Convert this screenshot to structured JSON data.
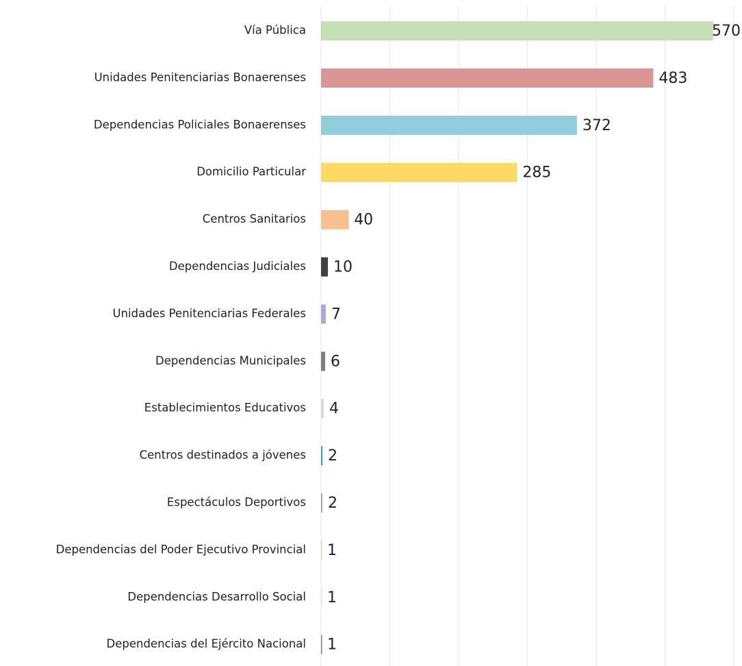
{
  "chart_data": {
    "type": "hbar",
    "categories": [
      "Vía Pública",
      "Unidades Penitenciarias Bonaerenses",
      "Dependencias Policiales Bonaerenses",
      "Domicilio Particular",
      "Centros Sanitarios",
      "Dependencias Judiciales",
      "Unidades Penitenciarias Federales",
      "Dependencias Municipales",
      "Establecimientos Educativos",
      "Centros destinados a jóvenes",
      "Espectáculos Deportivos",
      "Dependencias del Poder Ejecutivo Provincial",
      "Dependencias Desarrollo Social",
      "Dependencias del Ejército Nacional"
    ],
    "values": [
      570,
      483,
      372,
      285,
      40,
      10,
      7,
      6,
      4,
      2,
      2,
      1,
      1,
      1
    ],
    "colors": [
      "#c5e0b4",
      "#d99694",
      "#92cddc",
      "#ffd966",
      "#f8bf8f",
      "#404040",
      "#b4a7d6",
      "#7f7f7f",
      "#d9d9d9",
      "#2aa3d8",
      "#a6a6a6",
      "#f8cbad",
      "#e6f0a3",
      "#6f8f6f"
    ],
    "xlim": [
      0,
      600
    ],
    "xticks": [
      0,
      100,
      200,
      300,
      400,
      500,
      600
    ],
    "grid": true
  }
}
